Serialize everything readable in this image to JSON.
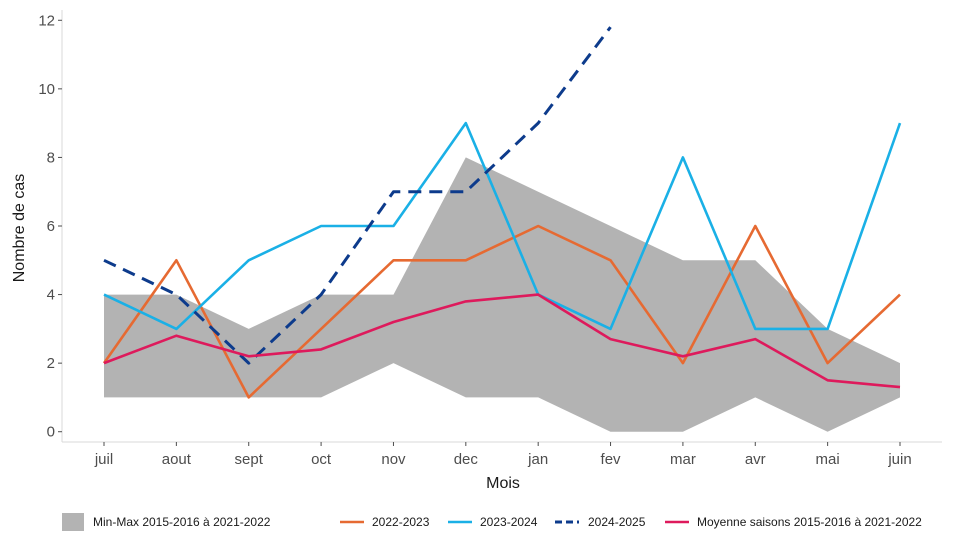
{
  "chart_data": {
    "type": "line",
    "title": "",
    "xlabel": "Mois",
    "ylabel": "Nombre de cas",
    "categories": [
      "juil",
      "aout",
      "sept",
      "oct",
      "nov",
      "dec",
      "jan",
      "fev",
      "mar",
      "avr",
      "mai",
      "juin"
    ],
    "yticks": [
      0,
      2,
      4,
      6,
      8,
      10,
      12
    ],
    "ylim": [
      -0.3,
      12.3
    ],
    "grid": false,
    "legend_position": "bottom",
    "band": {
      "name": "Min-Max 2015-2016 à 2021-2022",
      "color": "#b3b3b3",
      "min": [
        1,
        1,
        1,
        1,
        2,
        1,
        1,
        0,
        0,
        1,
        0,
        1
      ],
      "max": [
        4,
        4,
        3,
        4,
        4,
        8,
        7,
        6,
        5,
        5,
        3,
        2
      ]
    },
    "series": [
      {
        "name": "2022-2023",
        "color": "#e66a32",
        "dash": "solid",
        "values": [
          2,
          5,
          1,
          3,
          5,
          5,
          6,
          5,
          2,
          6,
          2,
          4
        ]
      },
      {
        "name": "2023-2024",
        "color": "#1ab0e6",
        "dash": "solid",
        "values": [
          4,
          3,
          5,
          6,
          6,
          9,
          4,
          3,
          8,
          3,
          3,
          9
        ]
      },
      {
        "name": "2024-2025",
        "color": "#0d3b8c",
        "dash": "dashed",
        "values": [
          5,
          4,
          2,
          4,
          7,
          7,
          9,
          11.8,
          null,
          null,
          null,
          null
        ]
      },
      {
        "name": "Moyenne saisons 2015-2016 à 2021-2022",
        "color": "#de1a5c",
        "dash": "solid",
        "values": [
          2,
          2.8,
          2.2,
          2.4,
          3.2,
          3.8,
          4,
          2.7,
          2.2,
          2.7,
          1.5,
          1.3
        ]
      }
    ]
  }
}
